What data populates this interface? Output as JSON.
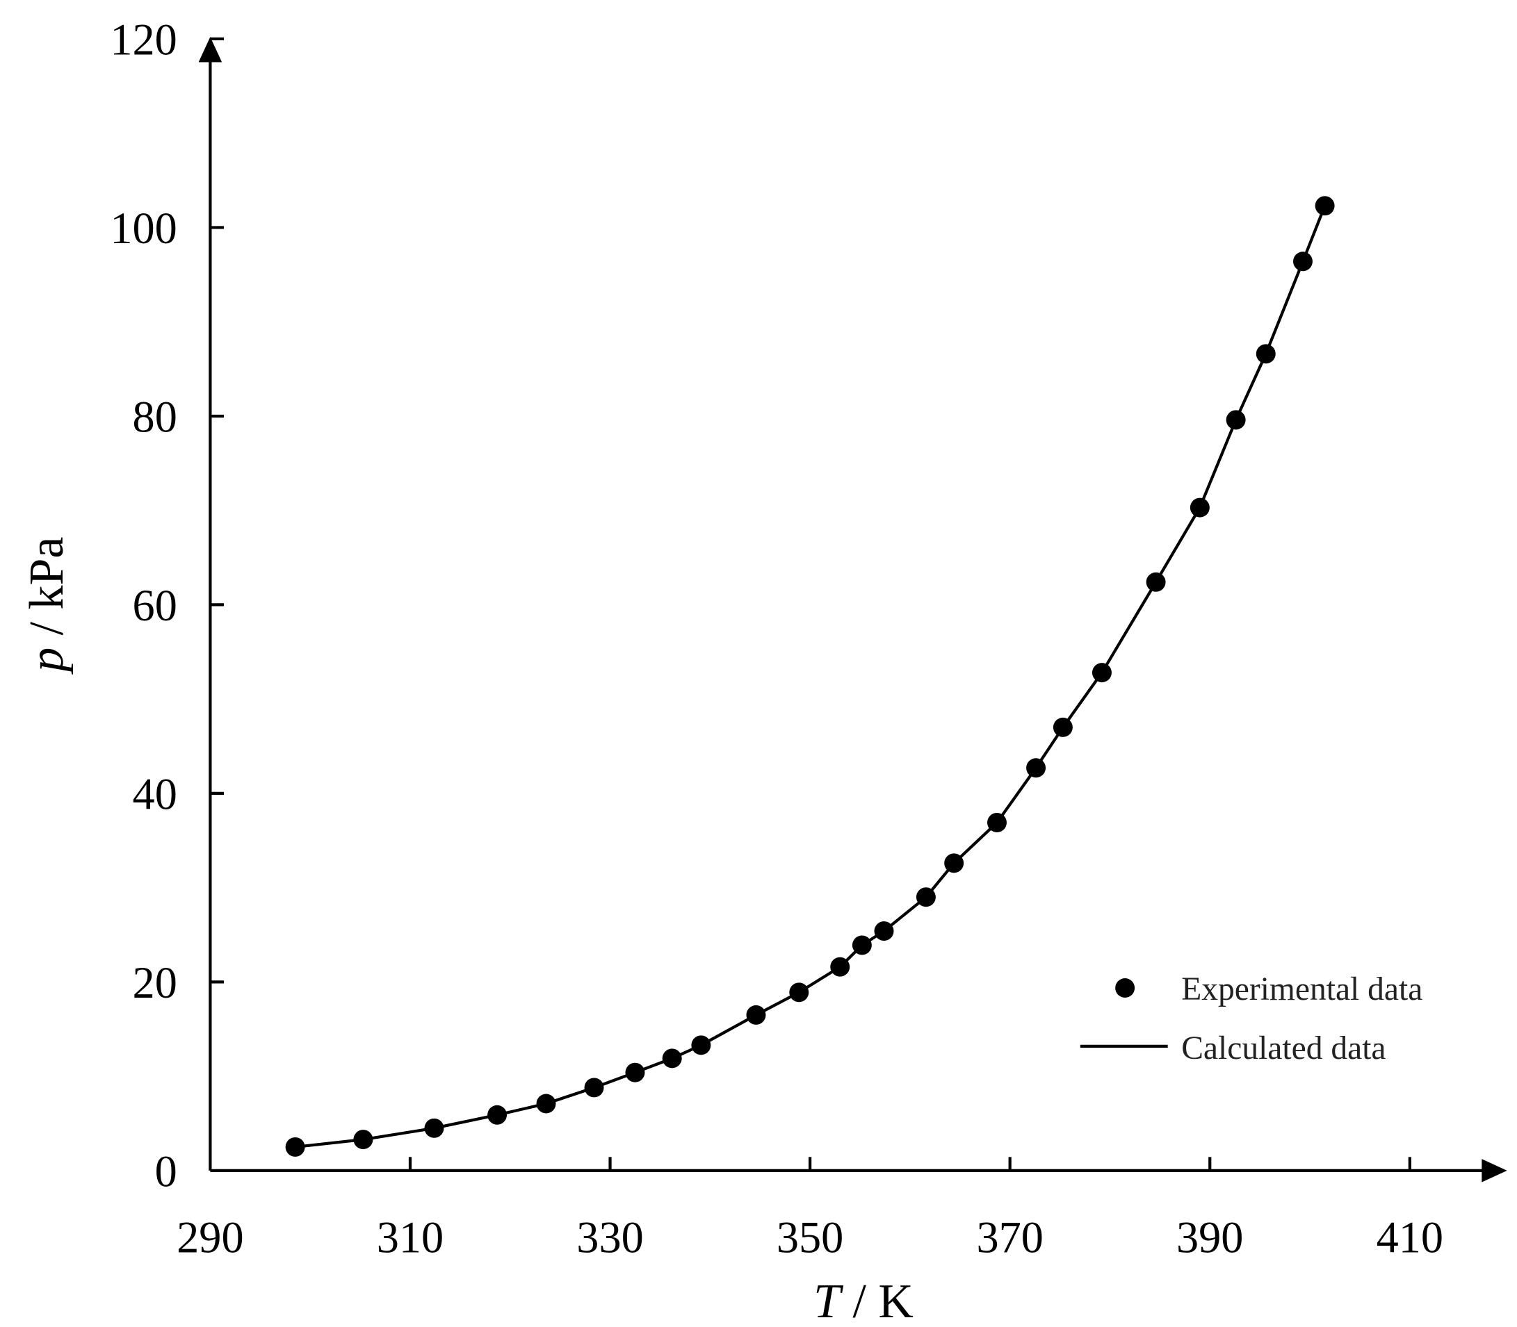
{
  "chart_data": {
    "type": "scatter",
    "title": "",
    "xlabel_var": "T",
    "xlabel_unit": " / K",
    "ylabel_var": "p",
    "ylabel_unit": " / kPa",
    "xlim": [
      290,
      420
    ],
    "ylim": [
      0,
      120
    ],
    "xticks": [
      290,
      310,
      330,
      350,
      370,
      390,
      410
    ],
    "yticks": [
      0,
      20,
      40,
      60,
      80,
      100,
      120
    ],
    "grid": false,
    "legend_position": "bottom-right",
    "series": [
      {
        "name": "Experimental data",
        "style": "markers",
        "x": [
          298.5,
          305.3,
          312.4,
          318.7,
          323.6,
          328.4,
          332.5,
          336.2,
          339.1,
          344.6,
          348.9,
          353.0,
          355.2,
          357.4,
          361.6,
          364.4,
          368.7,
          372.6,
          375.3,
          379.2,
          384.6,
          389.0,
          392.6,
          395.6,
          399.3,
          401.5
        ],
        "y": [
          2.5,
          3.3,
          4.5,
          5.9,
          7.1,
          8.8,
          10.4,
          11.9,
          13.3,
          16.5,
          18.9,
          21.6,
          23.9,
          25.4,
          29.0,
          32.6,
          36.9,
          42.7,
          47.0,
          52.8,
          62.4,
          70.3,
          79.6,
          86.6,
          96.4,
          102.3
        ]
      },
      {
        "name": "Calculated data",
        "style": "line",
        "x": [
          298.5,
          305.3,
          312.4,
          318.7,
          323.6,
          328.4,
          332.5,
          336.2,
          339.1,
          344.6,
          348.9,
          353.0,
          355.2,
          357.4,
          361.6,
          364.4,
          368.7,
          372.6,
          375.3,
          379.2,
          384.6,
          389.0,
          392.6,
          395.6,
          399.3,
          401.5
        ],
        "y": [
          2.5,
          3.3,
          4.5,
          5.9,
          7.1,
          8.8,
          10.4,
          11.9,
          13.3,
          16.5,
          18.9,
          21.6,
          23.9,
          25.4,
          29.0,
          32.6,
          36.9,
          42.7,
          47.0,
          52.8,
          62.4,
          70.3,
          79.6,
          86.6,
          96.4,
          102.3
        ]
      }
    ]
  }
}
